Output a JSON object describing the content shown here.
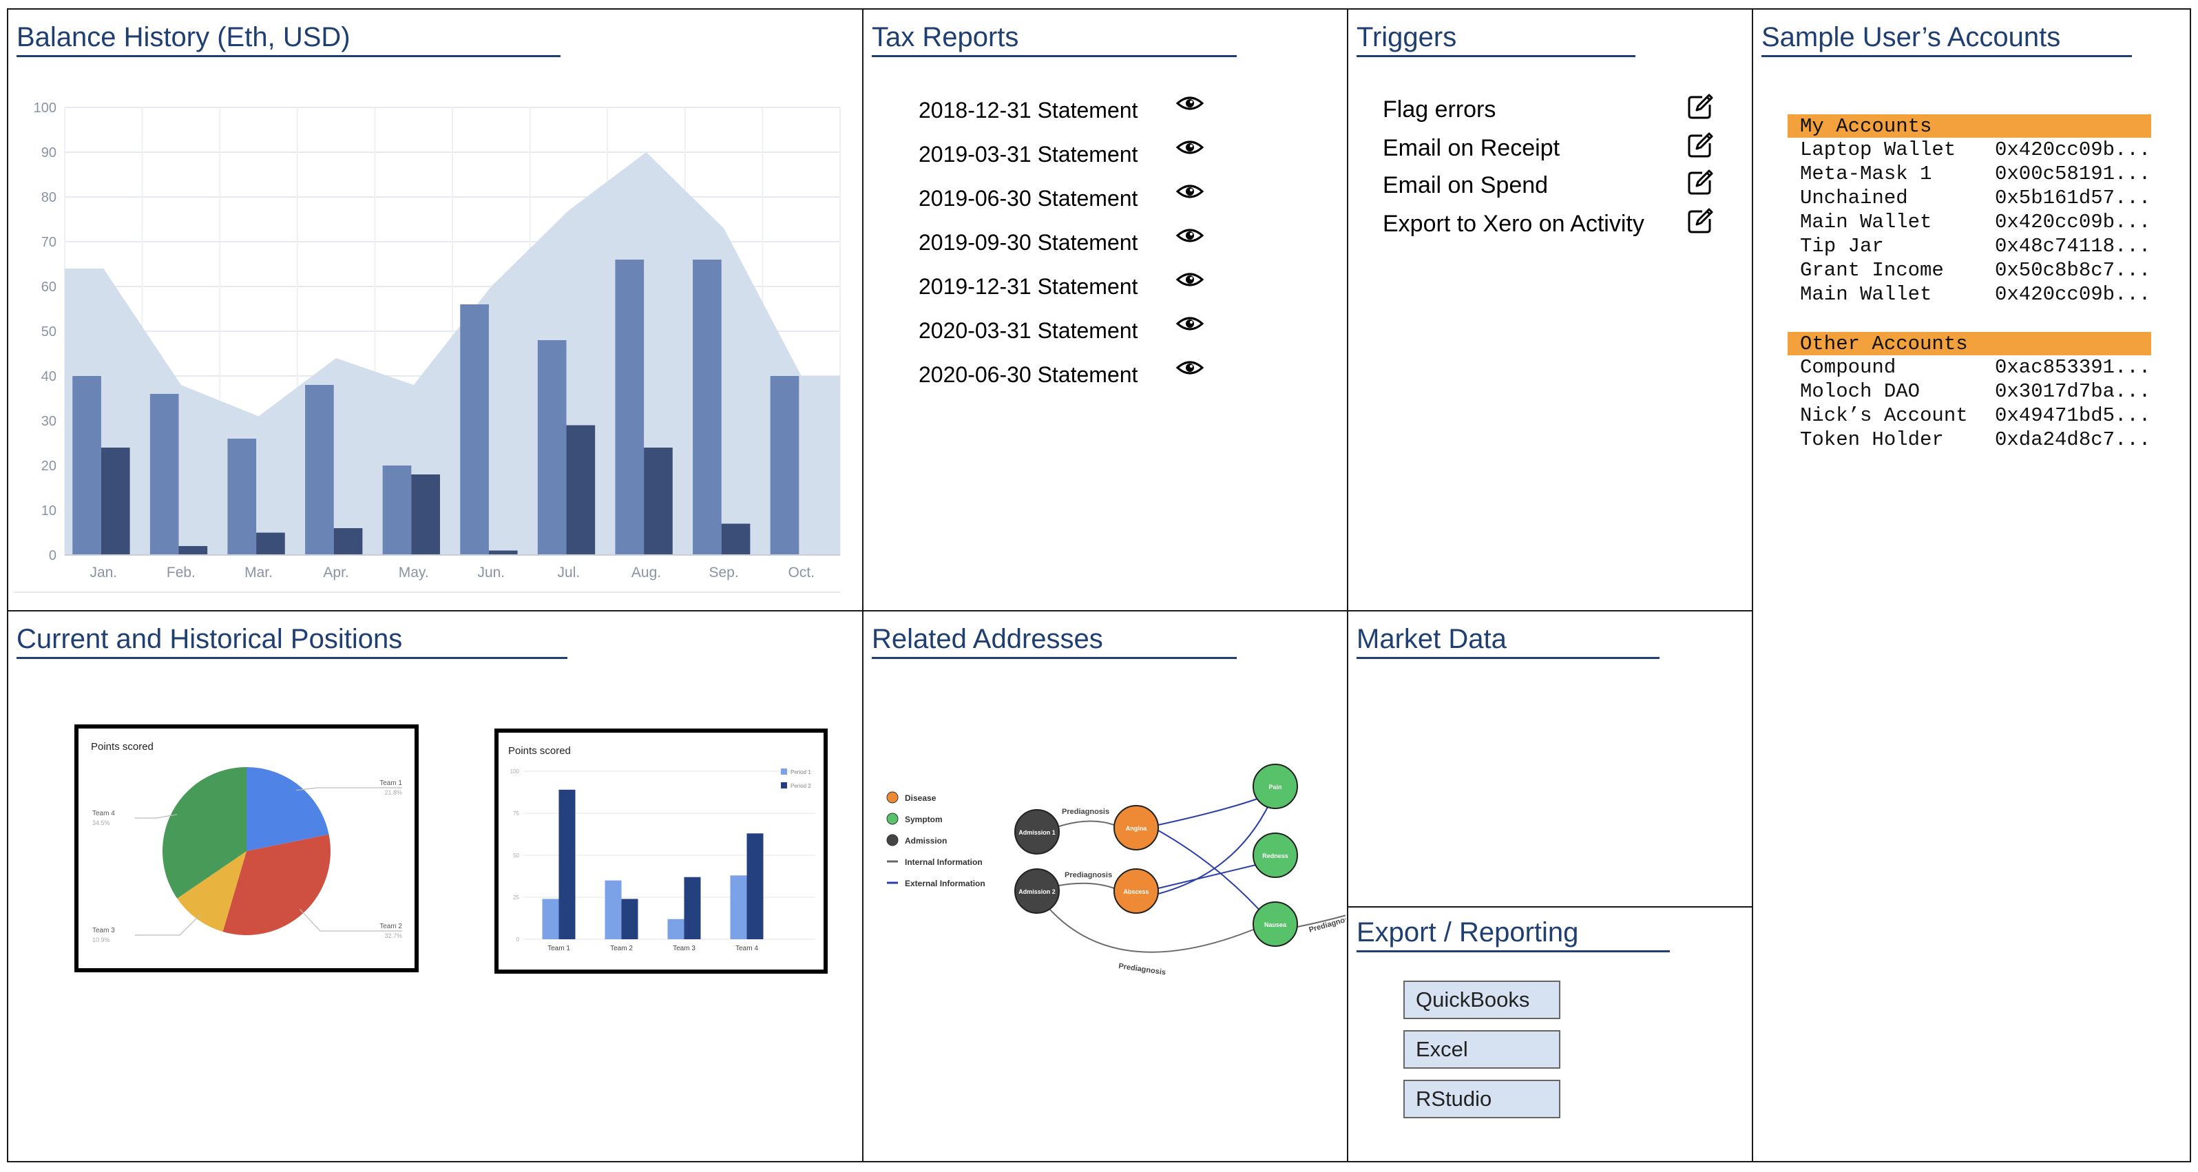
{
  "panels": {
    "balance_history": {
      "title": "Balance History (Eth, USD)"
    },
    "tax_reports": {
      "title": "Tax Reports",
      "statements": [
        {
          "label": "2018-12-31 Statement",
          "icon": "eye-icon"
        },
        {
          "label": "2019-03-31 Statement",
          "icon": "eye-icon"
        },
        {
          "label": "2019-06-30 Statement",
          "icon": "eye-icon"
        },
        {
          "label": "2019-09-30 Statement",
          "icon": "eye-icon"
        },
        {
          "label": "2019-12-31 Statement",
          "icon": "eye-icon"
        },
        {
          "label": "2020-03-31 Statement",
          "icon": "eye-icon"
        },
        {
          "label": "2020-06-30 Statement",
          "icon": "eye-icon"
        }
      ]
    },
    "triggers": {
      "title": "Triggers",
      "items": [
        {
          "label": "Flag errors",
          "icon": "edit-icon"
        },
        {
          "label": "Email on Receipt",
          "icon": "edit-icon"
        },
        {
          "label": "Email on Spend",
          "icon": "edit-icon"
        },
        {
          "label": "Export to Xero on Activity",
          "icon": "edit-icon"
        }
      ]
    },
    "accounts": {
      "title": "Sample User’s Accounts",
      "my_accounts": {
        "header": "My Accounts",
        "rows": [
          {
            "name": "Laptop Wallet",
            "address": "0x420cc09b..."
          },
          {
            "name": "Meta-Mask 1",
            "address": "0x00c58191..."
          },
          {
            "name": "Unchained",
            "address": "0x5b161d57..."
          },
          {
            "name": "Main Wallet",
            "address": "0x420cc09b..."
          },
          {
            "name": "Tip Jar",
            "address": "0x48c74118..."
          },
          {
            "name": "Grant Income",
            "address": "0x50c8b8c7..."
          },
          {
            "name": "Main Wallet",
            "address": "0x420cc09b..."
          }
        ]
      },
      "other_accounts": {
        "header": "Other Accounts",
        "rows": [
          {
            "name": "Compound",
            "address": "0xac853391..."
          },
          {
            "name": "Moloch DAO",
            "address": "0x3017d7ba..."
          },
          {
            "name": "Nick’s Account",
            "address": "0x49471bd5..."
          },
          {
            "name": "Token Holder",
            "address": "0xda24d8c7..."
          }
        ]
      },
      "header_color": "#f2a13c"
    },
    "positions": {
      "title": "Current and Historical Positions"
    },
    "related": {
      "title": "Related Addresses"
    },
    "market": {
      "title": "Market Data"
    },
    "export": {
      "title": "Export / Reporting",
      "buttons": [
        "QuickBooks",
        "Excel",
        "RStudio"
      ]
    }
  },
  "colors": {
    "title": "#1f3f73",
    "area": "#d3deec",
    "bar_light": "#6984b5",
    "bar_dark": "#3a4e78",
    "pie_blue": "#4f83e6",
    "pie_red": "#cf5040",
    "pie_yellow": "#e8b43f",
    "pie_green": "#489a59",
    "node_orange": "#ee8a36",
    "node_green": "#58c26a",
    "node_dark": "#444444",
    "edge_blue": "#2c3fa8"
  },
  "chart_data": [
    {
      "type": "bar",
      "categories": [
        "Jan.",
        "Feb.",
        "Mar.",
        "Apr.",
        "May.",
        "Jun.",
        "Jul.",
        "Aug.",
        "Sep.",
        "Oct."
      ],
      "area_values": [
        64,
        38,
        31,
        44,
        38,
        60,
        77,
        90,
        73,
        40
      ],
      "series": [
        {
          "values": [
            40,
            36,
            26,
            38,
            20,
            56,
            48,
            66,
            66,
            40
          ]
        },
        {
          "values": [
            24,
            2,
            5,
            6,
            18,
            1,
            29,
            24,
            7,
            0
          ]
        }
      ],
      "ylim": [
        0,
        100
      ],
      "yticks": [
        0,
        10,
        20,
        30,
        40,
        50,
        60,
        70,
        80,
        90,
        100
      ],
      "grid": true
    },
    {
      "type": "pie",
      "title": "Points scored",
      "slices": [
        {
          "label": "Team 1",
          "value": 21.8,
          "value_label": "21.8%"
        },
        {
          "label": "Team 2",
          "value": 32.7,
          "value_label": "32.7%"
        },
        {
          "label": "Team 3",
          "value": 10.9,
          "value_label": "10.9%"
        },
        {
          "label": "Team 4",
          "value": 34.5,
          "value_label": "34.5%"
        }
      ]
    },
    {
      "type": "bar",
      "title": "Points scored",
      "categories": [
        "Team 1",
        "Team 2",
        "Team 3",
        "Team 4"
      ],
      "series": [
        {
          "name": "Period 1",
          "values": [
            24,
            35,
            12,
            38
          ]
        },
        {
          "name": "Period 2",
          "values": [
            89,
            24,
            37,
            63
          ]
        }
      ],
      "ylim": [
        0,
        100
      ],
      "yticks": [
        0,
        25,
        50,
        75,
        100
      ],
      "legend": "top-right"
    },
    {
      "type": "network",
      "legend": [
        {
          "label": "Disease",
          "color": "#ee8a36"
        },
        {
          "label": "Symptom",
          "color": "#58c26a"
        },
        {
          "label": "Admission",
          "color": "#444444"
        },
        {
          "label": "Internal Information",
          "color": "#666666"
        },
        {
          "label": "External Information",
          "color": "#2c3fa8"
        }
      ],
      "nodes": [
        "Admission 1",
        "Admission 2",
        "Angina",
        "Abscess",
        "Pain",
        "Redness",
        "Nausea"
      ],
      "edge_label": "Prediagnosis"
    }
  ]
}
